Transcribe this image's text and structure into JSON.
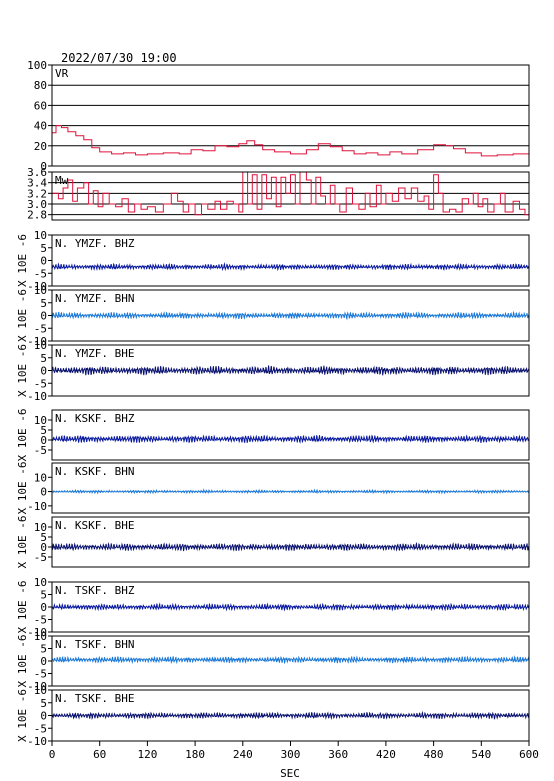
{
  "header": {
    "timestamp": "2022/07/30 19:00"
  },
  "chart_data": {
    "type": "line",
    "xlabel": "SEC",
    "xlim": [
      0,
      600
    ],
    "xticks": [
      0,
      60,
      120,
      180,
      240,
      300,
      360,
      420,
      480,
      540,
      600
    ],
    "seismo_ylabel": "X 10E -6",
    "panels": [
      {
        "label": "VR",
        "ylim": [
          0,
          100
        ],
        "yticks": [
          0,
          20,
          40,
          60,
          80,
          100
        ],
        "grid": true,
        "color": "#e0103a",
        "kind": "step",
        "points": [
          [
            0,
            33
          ],
          [
            5,
            40
          ],
          [
            12,
            38
          ],
          [
            20,
            34
          ],
          [
            30,
            30
          ],
          [
            40,
            26
          ],
          [
            50,
            18
          ],
          [
            60,
            14
          ],
          [
            75,
            12
          ],
          [
            90,
            13
          ],
          [
            105,
            11
          ],
          [
            120,
            12
          ],
          [
            140,
            13
          ],
          [
            160,
            12
          ],
          [
            175,
            16
          ],
          [
            190,
            15
          ],
          [
            205,
            20
          ],
          [
            220,
            19
          ],
          [
            235,
            22
          ],
          [
            245,
            25
          ],
          [
            255,
            21
          ],
          [
            265,
            16
          ],
          [
            280,
            14
          ],
          [
            300,
            12
          ],
          [
            320,
            16
          ],
          [
            335,
            22
          ],
          [
            350,
            19
          ],
          [
            365,
            15
          ],
          [
            380,
            12
          ],
          [
            395,
            13
          ],
          [
            410,
            11
          ],
          [
            425,
            14
          ],
          [
            440,
            12
          ],
          [
            460,
            16
          ],
          [
            480,
            21
          ],
          [
            495,
            20
          ],
          [
            505,
            17
          ],
          [
            520,
            13
          ],
          [
            540,
            10
          ],
          [
            560,
            11
          ],
          [
            580,
            12
          ],
          [
            600,
            11
          ]
        ]
      },
      {
        "label": "Mw",
        "ylim": [
          2.7,
          3.6
        ],
        "yticks": [
          2.8,
          3.0,
          3.2,
          3.4,
          3.6
        ],
        "grid": true,
        "color": "#e0103a",
        "kind": "step",
        "points": [
          [
            0,
            3.2
          ],
          [
            8,
            3.1
          ],
          [
            14,
            3.3
          ],
          [
            20,
            3.45
          ],
          [
            26,
            3.05
          ],
          [
            32,
            3.3
          ],
          [
            40,
            3.4
          ],
          [
            46,
            3.0
          ],
          [
            52,
            3.25
          ],
          [
            58,
            2.95
          ],
          [
            64,
            3.2
          ],
          [
            72,
            3.0
          ],
          [
            80,
            2.95
          ],
          [
            88,
            3.1
          ],
          [
            96,
            2.85
          ],
          [
            104,
            3.0
          ],
          [
            112,
            2.9
          ],
          [
            120,
            2.95
          ],
          [
            130,
            2.85
          ],
          [
            140,
            3.0
          ],
          [
            150,
            3.2
          ],
          [
            158,
            3.05
          ],
          [
            165,
            2.85
          ],
          [
            172,
            3.0
          ],
          [
            180,
            2.8
          ],
          [
            188,
            3.0
          ],
          [
            196,
            2.9
          ],
          [
            205,
            3.05
          ],
          [
            212,
            2.9
          ],
          [
            220,
            3.05
          ],
          [
            228,
            3.0
          ],
          [
            235,
            2.85
          ],
          [
            240,
            3.6
          ],
          [
            246,
            3.0
          ],
          [
            252,
            3.55
          ],
          [
            258,
            2.9
          ],
          [
            264,
            3.55
          ],
          [
            270,
            3.1
          ],
          [
            276,
            3.5
          ],
          [
            282,
            2.95
          ],
          [
            288,
            3.5
          ],
          [
            294,
            3.2
          ],
          [
            300,
            3.55
          ],
          [
            306,
            3.0
          ],
          [
            312,
            3.6
          ],
          [
            320,
            3.45
          ],
          [
            326,
            3.0
          ],
          [
            332,
            3.5
          ],
          [
            338,
            3.15
          ],
          [
            344,
            3.0
          ],
          [
            350,
            3.35
          ],
          [
            356,
            3.0
          ],
          [
            362,
            2.85
          ],
          [
            370,
            3.3
          ],
          [
            378,
            3.0
          ],
          [
            386,
            2.9
          ],
          [
            394,
            3.2
          ],
          [
            400,
            2.95
          ],
          [
            408,
            3.35
          ],
          [
            414,
            3.0
          ],
          [
            420,
            3.2
          ],
          [
            428,
            3.05
          ],
          [
            436,
            3.3
          ],
          [
            444,
            3.1
          ],
          [
            452,
            3.3
          ],
          [
            460,
            3.05
          ],
          [
            468,
            3.15
          ],
          [
            474,
            2.9
          ],
          [
            480,
            3.55
          ],
          [
            486,
            3.2
          ],
          [
            492,
            2.85
          ],
          [
            500,
            2.9
          ],
          [
            508,
            2.85
          ],
          [
            516,
            3.1
          ],
          [
            524,
            3.0
          ],
          [
            530,
            3.2
          ],
          [
            536,
            2.95
          ],
          [
            542,
            3.1
          ],
          [
            548,
            2.85
          ],
          [
            556,
            3.0
          ],
          [
            564,
            3.2
          ],
          [
            570,
            2.85
          ],
          [
            580,
            3.05
          ],
          [
            588,
            2.9
          ],
          [
            595,
            2.8
          ],
          [
            600,
            2.85
          ]
        ]
      },
      {
        "label": "N. YMZF. BHZ",
        "ylim": [
          -10,
          10
        ],
        "yticks": [
          -10,
          -5,
          0,
          5,
          10
        ],
        "color": "#0a1aa0",
        "kind": "wave",
        "offset": -2.5,
        "amp": 0.55,
        "seed": 11
      },
      {
        "label": "N. YMZF. BHN",
        "ylim": [
          -10,
          10
        ],
        "yticks": [
          -10,
          -5,
          0,
          5,
          10
        ],
        "color": "#1a78d8",
        "kind": "wave",
        "offset": 0,
        "amp": 0.6,
        "seed": 23
      },
      {
        "label": "N. YMZF. BHE",
        "ylim": [
          -10,
          10
        ],
        "yticks": [
          -10,
          -5,
          0,
          5,
          10
        ],
        "color": "#0a1270",
        "kind": "wave",
        "offset": 0,
        "amp": 0.85,
        "seed": 37
      },
      {
        "label": "N. KSKF. BHZ",
        "ylim": [
          -10,
          15
        ],
        "yticks": [
          -5,
          0,
          5,
          10
        ],
        "color": "#0a1aa0",
        "kind": "wave",
        "offset": 0.5,
        "amp": 0.9,
        "seed": 41
      },
      {
        "label": "N. KSKF. BHN",
        "ylim": [
          -15,
          20
        ],
        "yticks": [
          -10,
          0,
          10
        ],
        "color": "#1a78d8",
        "kind": "wave",
        "offset": 0,
        "amp": 0.5,
        "seed": 53
      },
      {
        "label": "N. KSKF. BHE",
        "ylim": [
          -10,
          15
        ],
        "yticks": [
          -5,
          0,
          5,
          10
        ],
        "color": "#0a1270",
        "kind": "wave",
        "offset": 0,
        "amp": 0.9,
        "seed": 67
      },
      {
        "label": "N. TSKF. BHZ",
        "ylim": [
          -10,
          10
        ],
        "yticks": [
          -10,
          -5,
          0,
          5,
          10
        ],
        "color": "#0a1aa0",
        "kind": "wave",
        "offset": 0,
        "amp": 0.6,
        "seed": 71
      },
      {
        "label": "N. TSKF. BHN",
        "ylim": [
          -10,
          10
        ],
        "yticks": [
          -10,
          -5,
          0,
          5,
          10
        ],
        "color": "#1a78d8",
        "kind": "wave",
        "offset": 0.5,
        "amp": 0.6,
        "seed": 83
      },
      {
        "label": "N. TSKF. BHE",
        "ylim": [
          -10,
          10
        ],
        "yticks": [
          -10,
          -5,
          0,
          5,
          10
        ],
        "color": "#0a1270",
        "kind": "wave",
        "offset": 0,
        "amp": 0.6,
        "seed": 97
      }
    ]
  }
}
